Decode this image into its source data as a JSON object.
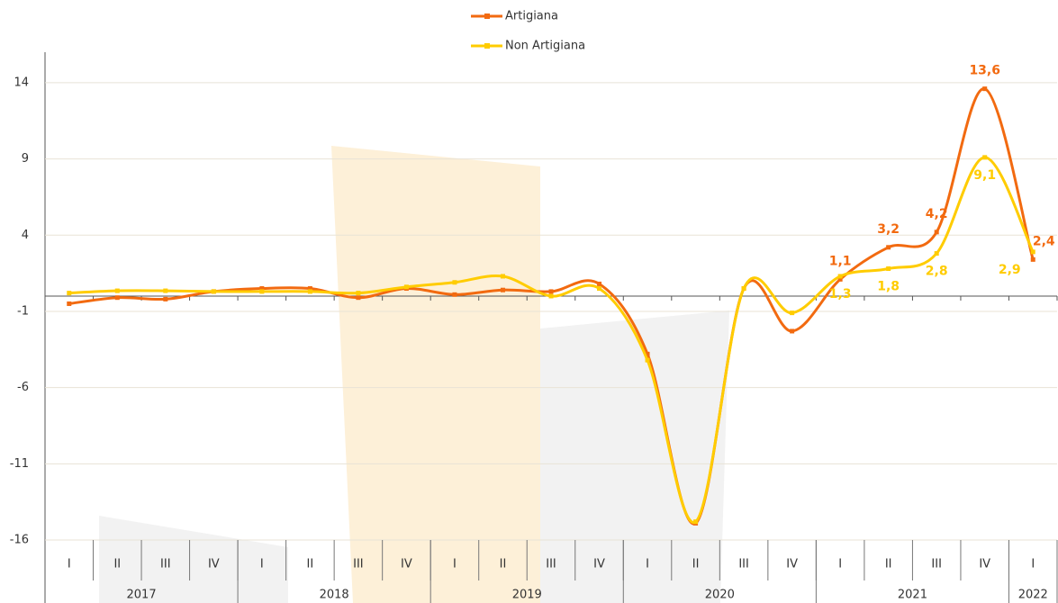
{
  "chart_data": {
    "type": "line",
    "categories": [
      "I",
      "II",
      "III",
      "IV",
      "I",
      "II",
      "III",
      "IV",
      "I",
      "II",
      "III",
      "IV",
      "I",
      "II",
      "III",
      "IV",
      "I",
      "II",
      "III",
      "IV",
      "I"
    ],
    "category_groups": [
      {
        "label": "2017",
        "count": 4
      },
      {
        "label": "2018",
        "count": 4
      },
      {
        "label": "2019",
        "count": 4
      },
      {
        "label": "2020",
        "count": 4
      },
      {
        "label": "2021",
        "count": 4
      },
      {
        "label": "2022",
        "count": 1
      }
    ],
    "series": [
      {
        "name": "Artigiana",
        "color": "#f26a10",
        "values": [
          -0.5,
          -0.1,
          -0.2,
          0.3,
          0.5,
          0.5,
          -0.1,
          0.5,
          0.1,
          0.4,
          0.3,
          0.8,
          -3.8,
          -14.9,
          0.5,
          -2.3,
          1.1,
          3.2,
          4.2,
          13.6,
          2.4
        ],
        "value_labels": [
          null,
          null,
          null,
          null,
          null,
          null,
          null,
          null,
          null,
          null,
          null,
          null,
          null,
          null,
          null,
          null,
          "1,1",
          "3,2",
          "4,2",
          "13,6",
          "2,4"
        ]
      },
      {
        "name": "Non Artigiana",
        "color": "#ffcc00",
        "values": [
          0.2,
          0.35,
          0.35,
          0.3,
          0.3,
          0.3,
          0.2,
          0.6,
          0.9,
          1.3,
          0,
          0.5,
          -4.2,
          -14.8,
          0.5,
          -1.1,
          1.3,
          1.8,
          2.8,
          9.1,
          2.9
        ],
        "value_labels": [
          null,
          null,
          null,
          null,
          null,
          null,
          null,
          null,
          null,
          null,
          null,
          null,
          null,
          null,
          null,
          null,
          "1,3",
          "1,8",
          "2,8",
          "9,1",
          "2,9"
        ]
      }
    ],
    "ylim": [
      -16,
      16
    ],
    "yticks": [
      14,
      9,
      4,
      -1,
      -6,
      -11,
      -16
    ],
    "grid": true
  }
}
